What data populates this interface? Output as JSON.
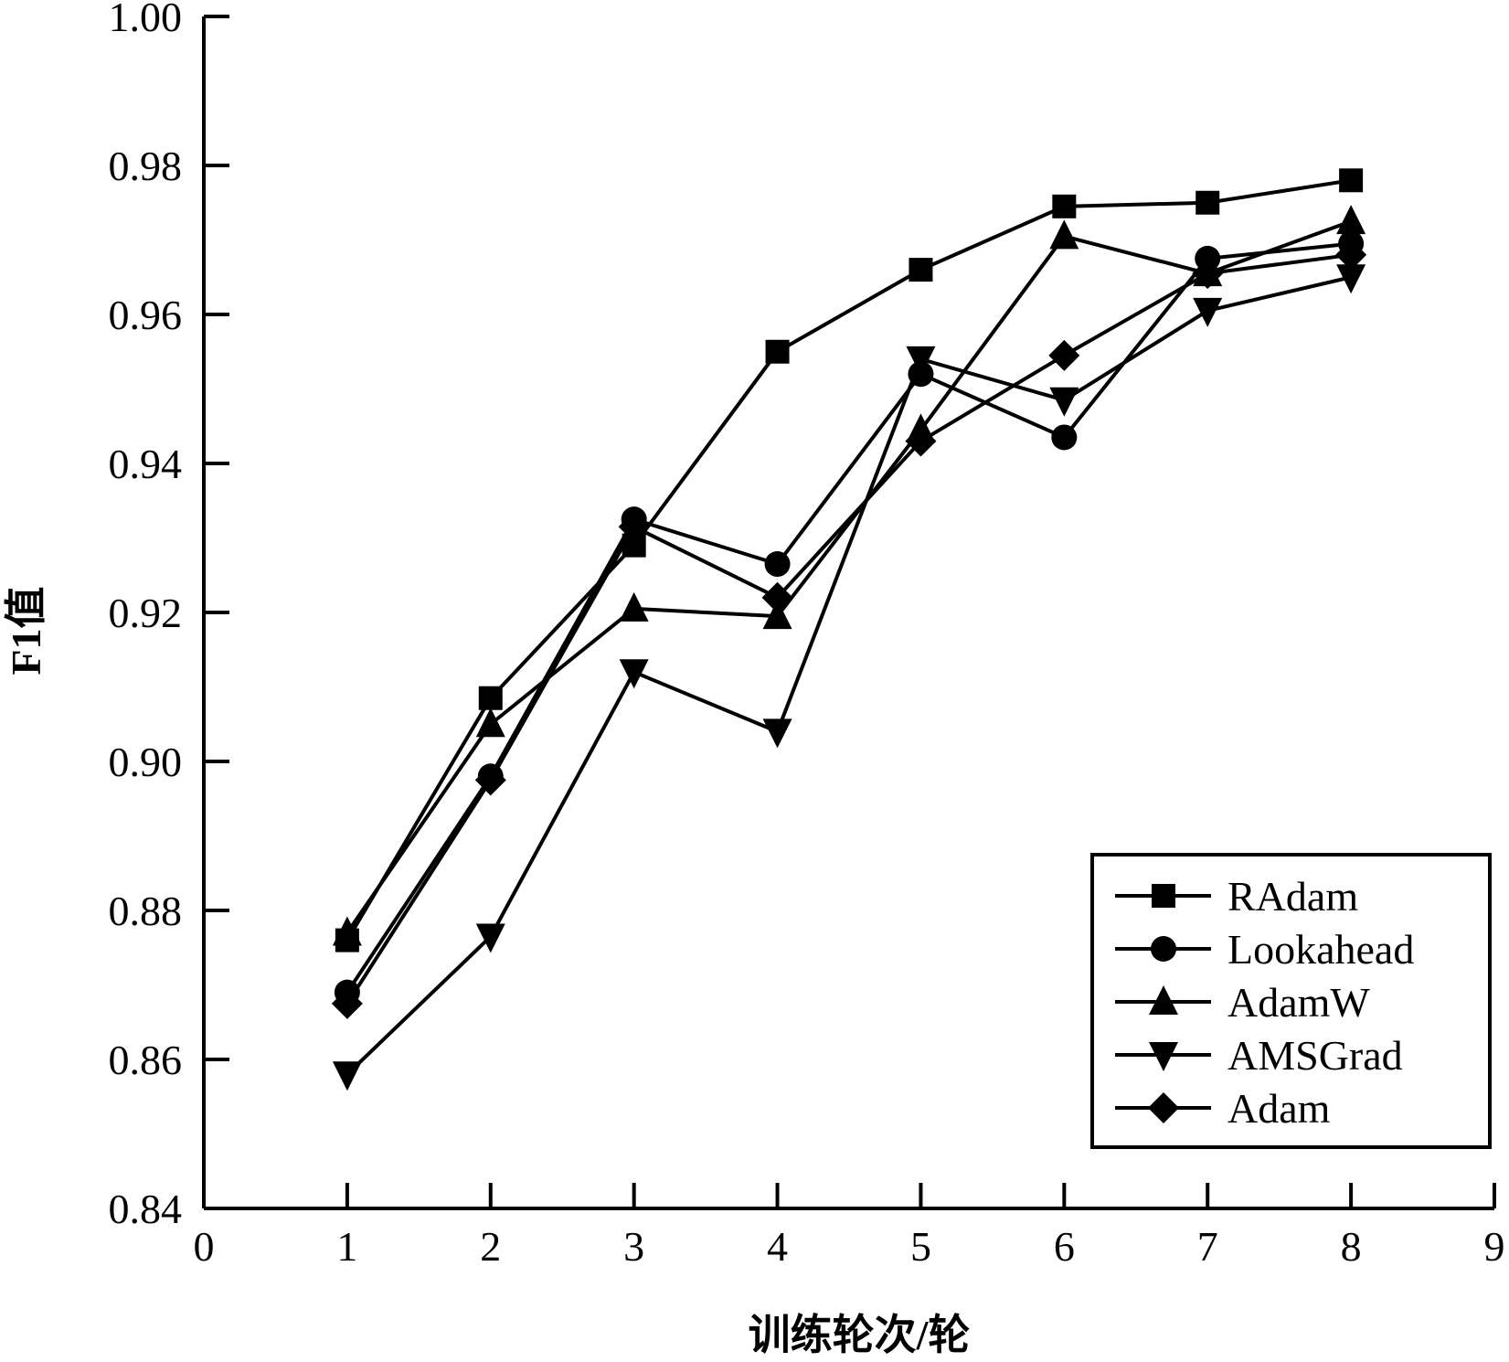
{
  "chart_data": {
    "type": "line",
    "title": "",
    "xlabel": "训练轮次/轮",
    "ylabel": "F1值",
    "xlim": [
      0,
      9
    ],
    "ylim": [
      0.84,
      1.0
    ],
    "x_ticks": [
      "0",
      "1",
      "2",
      "3",
      "4",
      "5",
      "6",
      "7",
      "8",
      "9"
    ],
    "y_ticks": [
      "0.84",
      "0.86",
      "0.88",
      "0.90",
      "0.92",
      "0.94",
      "0.96",
      "0.98",
      "1.00"
    ],
    "grid": false,
    "legend_position": "bottom-right",
    "x": [
      1,
      2,
      3,
      4,
      5,
      6,
      7,
      8
    ],
    "series": [
      {
        "name": "RAdam",
        "marker": "square",
        "values": [
          0.876,
          0.9085,
          0.929,
          0.955,
          0.966,
          0.9745,
          0.975,
          0.978
        ]
      },
      {
        "name": "Lookahead",
        "marker": "circle",
        "values": [
          0.869,
          0.898,
          0.9325,
          0.9265,
          0.952,
          0.9435,
          0.9675,
          0.9695
        ]
      },
      {
        "name": "AdamW",
        "marker": "triangle-up",
        "values": [
          0.877,
          0.905,
          0.9205,
          0.9195,
          0.9445,
          0.9705,
          0.9655,
          0.9725
        ]
      },
      {
        "name": "AMSGrad",
        "marker": "triangle-down",
        "values": [
          0.858,
          0.8765,
          0.912,
          0.904,
          0.954,
          0.9485,
          0.9605,
          0.965
        ]
      },
      {
        "name": "Adam",
        "marker": "diamond",
        "values": [
          0.8675,
          0.8975,
          0.9315,
          0.922,
          0.943,
          0.9545,
          0.9655,
          0.968
        ]
      }
    ]
  }
}
